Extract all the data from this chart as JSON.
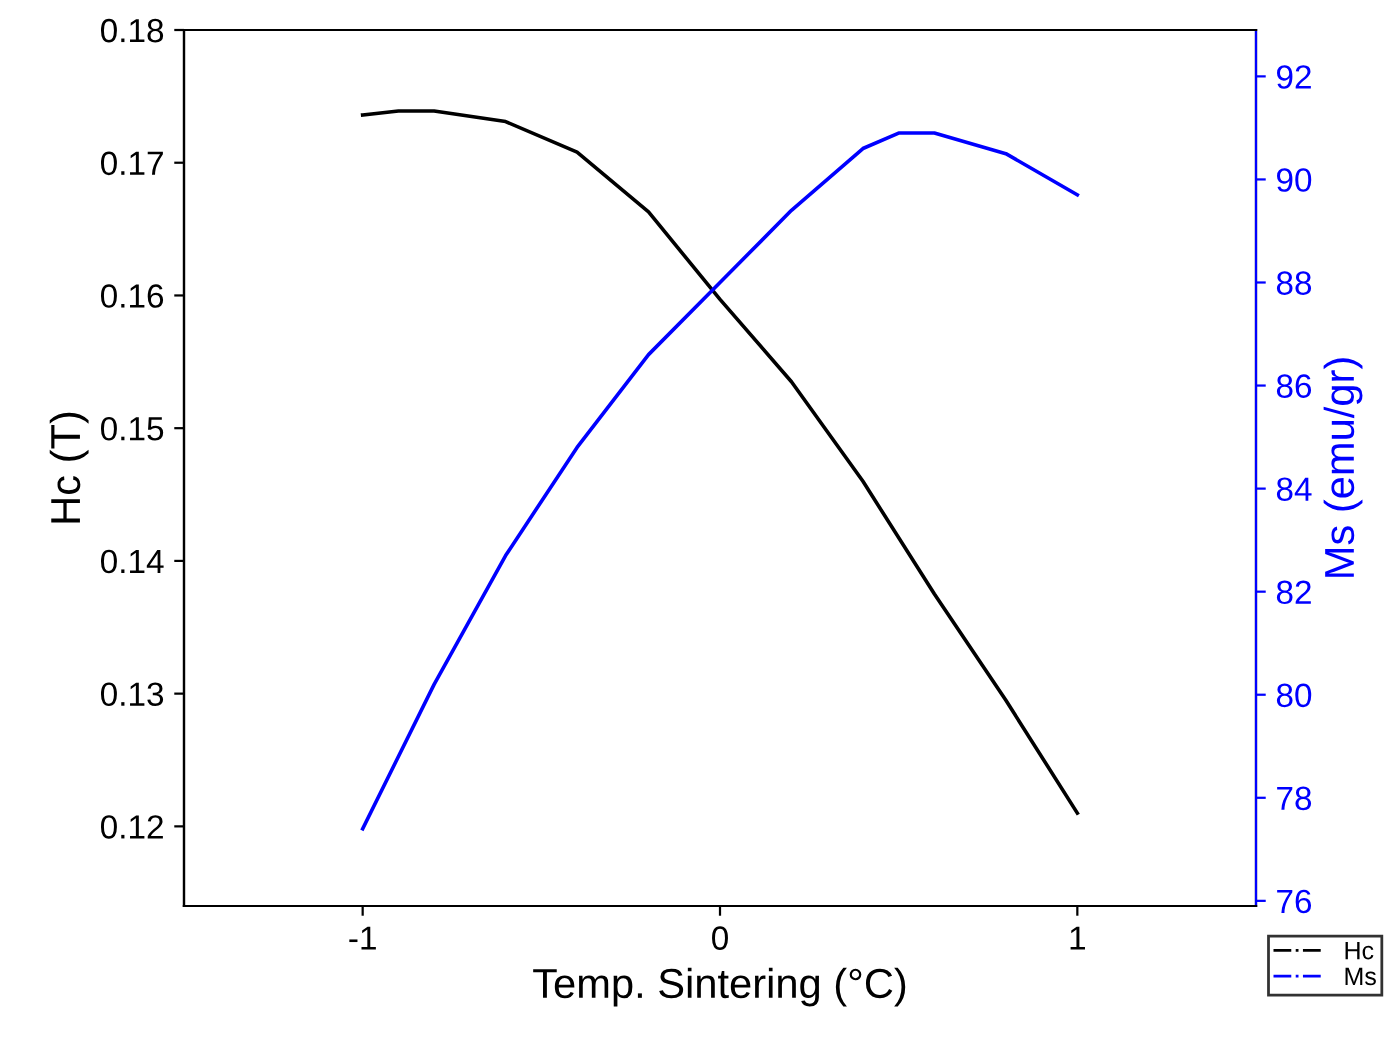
{
  "chart_data": {
    "type": "line",
    "xlabel": "Temp. Sintering (°C)",
    "ylabel": "Hc (T)",
    "y2label": "Ms (emu/gr)",
    "xlim": [
      -1.5,
      1.5
    ],
    "xticks": [
      -1,
      0,
      1
    ],
    "ylim": [
      0.114,
      0.18
    ],
    "yticks": [
      0.12,
      0.13,
      0.14,
      0.15,
      0.16,
      0.17,
      0.18
    ],
    "y2lim": [
      75.9,
      92.9
    ],
    "y2ticks": [
      76,
      78,
      80,
      82,
      84,
      86,
      88,
      90,
      92
    ],
    "legend": "bottom right",
    "grid": false,
    "marker": "none",
    "line_style": "solid",
    "series": [
      {
        "name": "Hc",
        "color": "#000000",
        "x": [
          -1,
          -0.9,
          -0.8,
          -0.6,
          -0.4,
          -0.2,
          0,
          0.2,
          0.4,
          0.6,
          0.8,
          1
        ],
        "values": [
          0.1736,
          0.1739,
          0.1739,
          0.1731,
          0.1708,
          0.1663,
          0.1597,
          0.1535,
          0.146,
          0.1375,
          0.1295,
          0.121
        ]
      },
      {
        "name": "Ms",
        "color": "#0000ff",
        "axis": "y2",
        "x": [
          -1,
          -0.8,
          -0.6,
          -0.4,
          -0.2,
          0,
          0.2,
          0.4,
          0.5,
          0.6,
          0.8,
          1
        ],
        "values": [
          77.4,
          80.2,
          82.7,
          84.8,
          86.6,
          88.0,
          89.4,
          90.6,
          90.9,
          90.9,
          90.5,
          89.7
        ]
      }
    ]
  }
}
